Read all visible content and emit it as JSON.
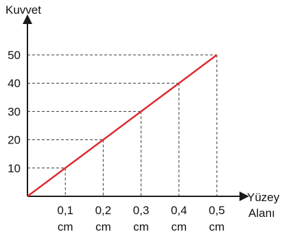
{
  "chart_data": {
    "type": "line",
    "ylabel": "Kuvvet",
    "xlabel_line1": "Yüzey",
    "xlabel_line2": "Alanı",
    "x": [
      0,
      0.1,
      0.2,
      0.3,
      0.4,
      0.5
    ],
    "y": [
      0,
      10,
      20,
      30,
      40,
      50
    ],
    "x_ticks": [
      {
        "value": 0.1,
        "num": "0,1",
        "unit": "cm"
      },
      {
        "value": 0.2,
        "num": "0,2",
        "unit": "cm"
      },
      {
        "value": 0.3,
        "num": "0,3",
        "unit": "cm"
      },
      {
        "value": 0.4,
        "num": "0,4",
        "unit": "cm"
      },
      {
        "value": 0.5,
        "num": "0,5",
        "unit": "cm"
      }
    ],
    "y_ticks": [
      {
        "value": 10,
        "label": "10"
      },
      {
        "value": 20,
        "label": "20"
      },
      {
        "value": 30,
        "label": "30"
      },
      {
        "value": 40,
        "label": "40"
      },
      {
        "value": 50,
        "label": "50"
      }
    ],
    "xlim": [
      0,
      0.5
    ],
    "ylim": [
      0,
      50
    ],
    "guide_lines": "dashed",
    "line_color": "#e0282e",
    "axis_color": "#1a1a1a",
    "guide_color": "#333333"
  }
}
